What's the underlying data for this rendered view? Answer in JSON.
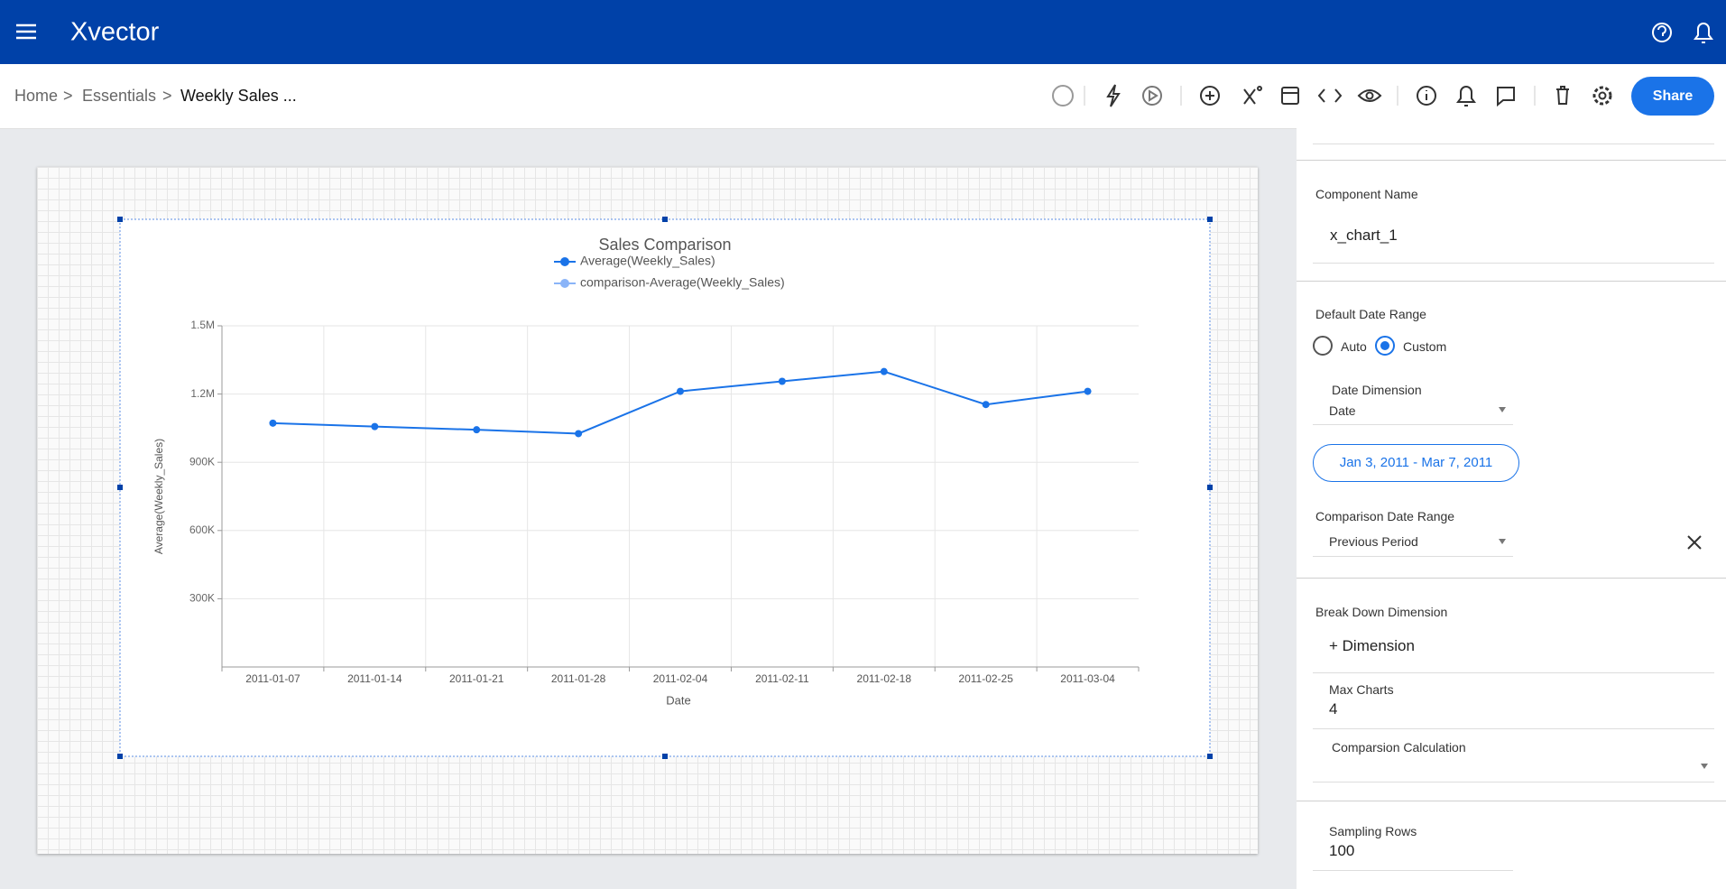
{
  "header": {
    "brand": "Xvector"
  },
  "breadcrumb": [
    "Home",
    ">",
    "Essentials",
    ">",
    "Weekly Sales ..."
  ],
  "toolbar": {
    "share": "Share"
  },
  "chart_data": {
    "type": "line",
    "title": "Sales Comparison",
    "x_label": "Date",
    "y_label": "Average(Weekly_Sales)",
    "categories": [
      "2011-01-07",
      "2011-01-14",
      "2011-01-21",
      "2011-01-28",
      "2011-02-04",
      "2011-02-11",
      "2011-02-18",
      "2011-02-25",
      "2011-03-04"
    ],
    "series": [
      {
        "name": "Average(Weekly_Sales)",
        "color": "#1a73e8",
        "values": [
          1072000,
          1057000,
          1043000,
          1026000,
          1212000,
          1256000,
          1299000,
          1154000,
          1212000
        ]
      },
      {
        "name": "comparison-Average(Weekly_Sales)",
        "color": "#8ab4f8",
        "values": [
          null,
          null,
          null,
          null,
          null,
          null,
          null,
          null,
          null
        ]
      }
    ],
    "ylim": [
      0,
      1500000
    ],
    "yticks": [
      {
        "value": 300000,
        "label": "300K"
      },
      {
        "value": 600000,
        "label": "600K"
      },
      {
        "value": 900000,
        "label": "900K"
      },
      {
        "value": 1200000,
        "label": "1.2M"
      },
      {
        "value": 1500000,
        "label": "1.5M"
      }
    ],
    "grid": true
  },
  "panel": {
    "component_name_label": "Component Name",
    "component_name": "x_chart_1",
    "default_date_range_label": "Default Date Range",
    "radio_options": [
      "Auto",
      "Custom"
    ],
    "date_dimension_label": "Date Dimension",
    "date_dimension": "Date",
    "date_range": "Jan 3, 2011 - Mar 7, 2011",
    "comparison_date_range_label": "Comparison Date Range",
    "comparison_date_range": "Previous Period",
    "break_down_label": "Break Down Dimension",
    "add_dimension": "+ Dimension",
    "max_charts_label": "Max Charts",
    "max_charts": 4,
    "comparison_calc_label": "Comparsion Calculation",
    "sampling_rows_label": "Sampling Rows",
    "sampling_rows": 100
  }
}
